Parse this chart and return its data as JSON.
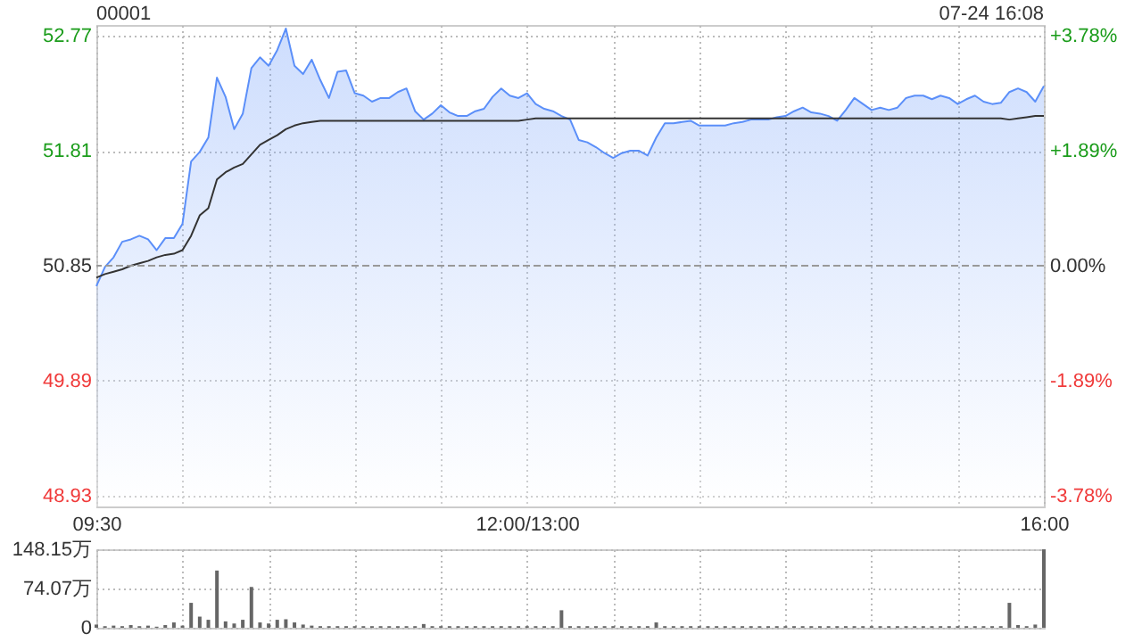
{
  "chart_data": [
    {
      "type": "area",
      "title": "00001",
      "annotations": [
        "07-24 16:08"
      ],
      "grid": true,
      "categories": [
        "09:30",
        null,
        null,
        null,
        null,
        null,
        null,
        null,
        null,
        null,
        null,
        null,
        null,
        null,
        null,
        null,
        null,
        null,
        null,
        null,
        null,
        null,
        null,
        null,
        null,
        null,
        null,
        null,
        null,
        null,
        null,
        null,
        null,
        null,
        null,
        null,
        null,
        null,
        null,
        null,
        null,
        null,
        null,
        null,
        null,
        null,
        null,
        null,
        null,
        null,
        "12:00/13:00",
        null,
        null,
        null,
        null,
        null,
        null,
        null,
        null,
        null,
        null,
        null,
        null,
        null,
        null,
        null,
        null,
        null,
        null,
        null,
        null,
        null,
        null,
        null,
        null,
        null,
        null,
        null,
        null,
        null,
        null,
        null,
        null,
        null,
        null,
        null,
        null,
        null,
        null,
        null,
        null,
        null,
        null,
        null,
        null,
        null,
        null,
        null,
        null,
        null,
        null,
        null,
        null,
        null,
        null,
        null,
        null,
        null,
        null,
        null,
        "16:00"
      ],
      "ylim": [
        48.84,
        52.86
      ],
      "yticks": [
        48.93,
        49.89,
        50.85,
        51.81,
        52.77
      ],
      "y2lim": [
        -3.95,
        3.95
      ],
      "y2ticks": [
        {
          "value": -3.78,
          "label": "-3.78%"
        },
        {
          "value": -1.89,
          "label": "-1.89%"
        },
        {
          "value": 0,
          "label": "0.00%"
        },
        {
          "value": 1.89,
          "label": "+1.89%"
        },
        {
          "value": 3.78,
          "label": "+3.78%"
        }
      ],
      "ref_lines": [
        {
          "axis": "y2",
          "value": 0,
          "color": "#999999",
          "line_style": "dashed"
        }
      ],
      "series": [
        {
          "type": "area",
          "color": "#5b8ff9",
          "values": [
            50.68,
            50.84,
            50.92,
            51.05,
            51.07,
            51.1,
            51.07,
            50.98,
            51.08,
            51.08,
            51.2,
            51.72,
            51.8,
            51.92,
            52.42,
            52.26,
            51.99,
            52.12,
            52.5,
            52.59,
            52.52,
            52.65,
            52.83,
            52.52,
            52.45,
            52.57,
            52.4,
            52.25,
            52.47,
            52.48,
            52.29,
            52.27,
            52.22,
            52.25,
            52.25,
            52.3,
            52.33,
            52.14,
            52.07,
            52.12,
            52.19,
            52.13,
            52.1,
            52.1,
            52.14,
            52.16,
            52.26,
            52.33,
            52.27,
            52.25,
            52.29,
            52.2,
            52.16,
            52.14,
            52.1,
            52.07,
            51.9,
            51.88,
            51.84,
            51.79,
            51.75,
            51.79,
            51.81,
            51.81,
            51.77,
            51.92,
            52.04,
            52.04,
            52.05,
            52.06,
            52.02,
            52.02,
            52.02,
            52.02,
            52.04,
            52.05,
            52.07,
            52.07,
            52.07,
            52.09,
            52.1,
            52.14,
            52.17,
            52.13,
            52.12,
            52.1,
            52.06,
            52.15,
            52.25,
            52.2,
            52.15,
            52.17,
            52.15,
            52.17,
            52.25,
            52.27,
            52.27,
            52.24,
            52.27,
            52.25,
            52.2,
            52.24,
            52.27,
            52.22,
            52.2,
            52.21,
            52.3,
            52.33,
            52.3,
            52.22,
            52.35
          ]
        },
        {
          "type": "line",
          "color": "#333333",
          "values": [
            50.75,
            50.78,
            50.8,
            50.82,
            50.85,
            50.87,
            50.89,
            50.92,
            50.94,
            50.95,
            50.98,
            51.1,
            51.27,
            51.33,
            51.57,
            51.63,
            51.67,
            51.7,
            51.78,
            51.86,
            51.9,
            51.94,
            51.99,
            52.02,
            52.04,
            52.05,
            52.06,
            52.06,
            52.06,
            52.06,
            52.06,
            52.06,
            52.06,
            52.06,
            52.06,
            52.06,
            52.06,
            52.06,
            52.06,
            52.06,
            52.06,
            52.06,
            52.06,
            52.06,
            52.06,
            52.06,
            52.06,
            52.06,
            52.06,
            52.06,
            52.07,
            52.08,
            52.08,
            52.08,
            52.08,
            52.08,
            52.08,
            52.08,
            52.08,
            52.08,
            52.08,
            52.08,
            52.08,
            52.08,
            52.08,
            52.08,
            52.08,
            52.08,
            52.08,
            52.08,
            52.08,
            52.08,
            52.08,
            52.08,
            52.08,
            52.08,
            52.08,
            52.08,
            52.08,
            52.08,
            52.08,
            52.08,
            52.08,
            52.08,
            52.08,
            52.08,
            52.08,
            52.08,
            52.08,
            52.08,
            52.08,
            52.08,
            52.08,
            52.08,
            52.08,
            52.08,
            52.08,
            52.08,
            52.08,
            52.08,
            52.08,
            52.08,
            52.08,
            52.08,
            52.08,
            52.08,
            52.07,
            52.08,
            52.09,
            52.1,
            52.1
          ]
        }
      ]
    },
    {
      "type": "bar",
      "grid": true,
      "tick_labels": "y",
      "color": "#666666",
      "categories": [
        null,
        null,
        null,
        null,
        null,
        null,
        null,
        null,
        null,
        null,
        null,
        null,
        null,
        null,
        null,
        null,
        null,
        null,
        null,
        null,
        null,
        null,
        null,
        null,
        null,
        null,
        null,
        null,
        null,
        null,
        null,
        null,
        null,
        null,
        null,
        null,
        null,
        null,
        null,
        null,
        null,
        null,
        null,
        null,
        null,
        null,
        null,
        null,
        null,
        null,
        null,
        null,
        null,
        null,
        null,
        null,
        null,
        null,
        null,
        null,
        null,
        null,
        null,
        null,
        null,
        null,
        null,
        null,
        null,
        null,
        null,
        null,
        null,
        null,
        null,
        null,
        null,
        null,
        null,
        null,
        null,
        null,
        null,
        null,
        null,
        null,
        null,
        null,
        null,
        null,
        null,
        null,
        null,
        null,
        null,
        null,
        null,
        null,
        null,
        null,
        null,
        null,
        null,
        null,
        null,
        null,
        null,
        null,
        null,
        null,
        null
      ],
      "ylim": [
        0,
        148.15
      ],
      "yticks": [
        0,
        {
          "value": 74.07,
          "label": "74.07万"
        },
        {
          "value": 148.15,
          "label": "148.15万"
        }
      ],
      "values": [
        6,
        3,
        4,
        3,
        5,
        3,
        4,
        2,
        5,
        10,
        4,
        47,
        21,
        15,
        108,
        12,
        8,
        15,
        77,
        10,
        8,
        15,
        16,
        10,
        6,
        4,
        3,
        3,
        3,
        3,
        3,
        3,
        3,
        3,
        3,
        3,
        3,
        3,
        7,
        3,
        3,
        3,
        3,
        3,
        3,
        3,
        3,
        3,
        3,
        3,
        3,
        3,
        3,
        3,
        33,
        3,
        3,
        3,
        3,
        3,
        3,
        3,
        3,
        3,
        3,
        10,
        3,
        3,
        3,
        3,
        3,
        3,
        3,
        3,
        3,
        3,
        3,
        3,
        3,
        3,
        3,
        3,
        3,
        3,
        3,
        3,
        3,
        3,
        3,
        3,
        3,
        3,
        3,
        3,
        3,
        3,
        3,
        3,
        3,
        3,
        3,
        3,
        3,
        3,
        3,
        3,
        47,
        5,
        3,
        6,
        148
      ]
    }
  ]
}
